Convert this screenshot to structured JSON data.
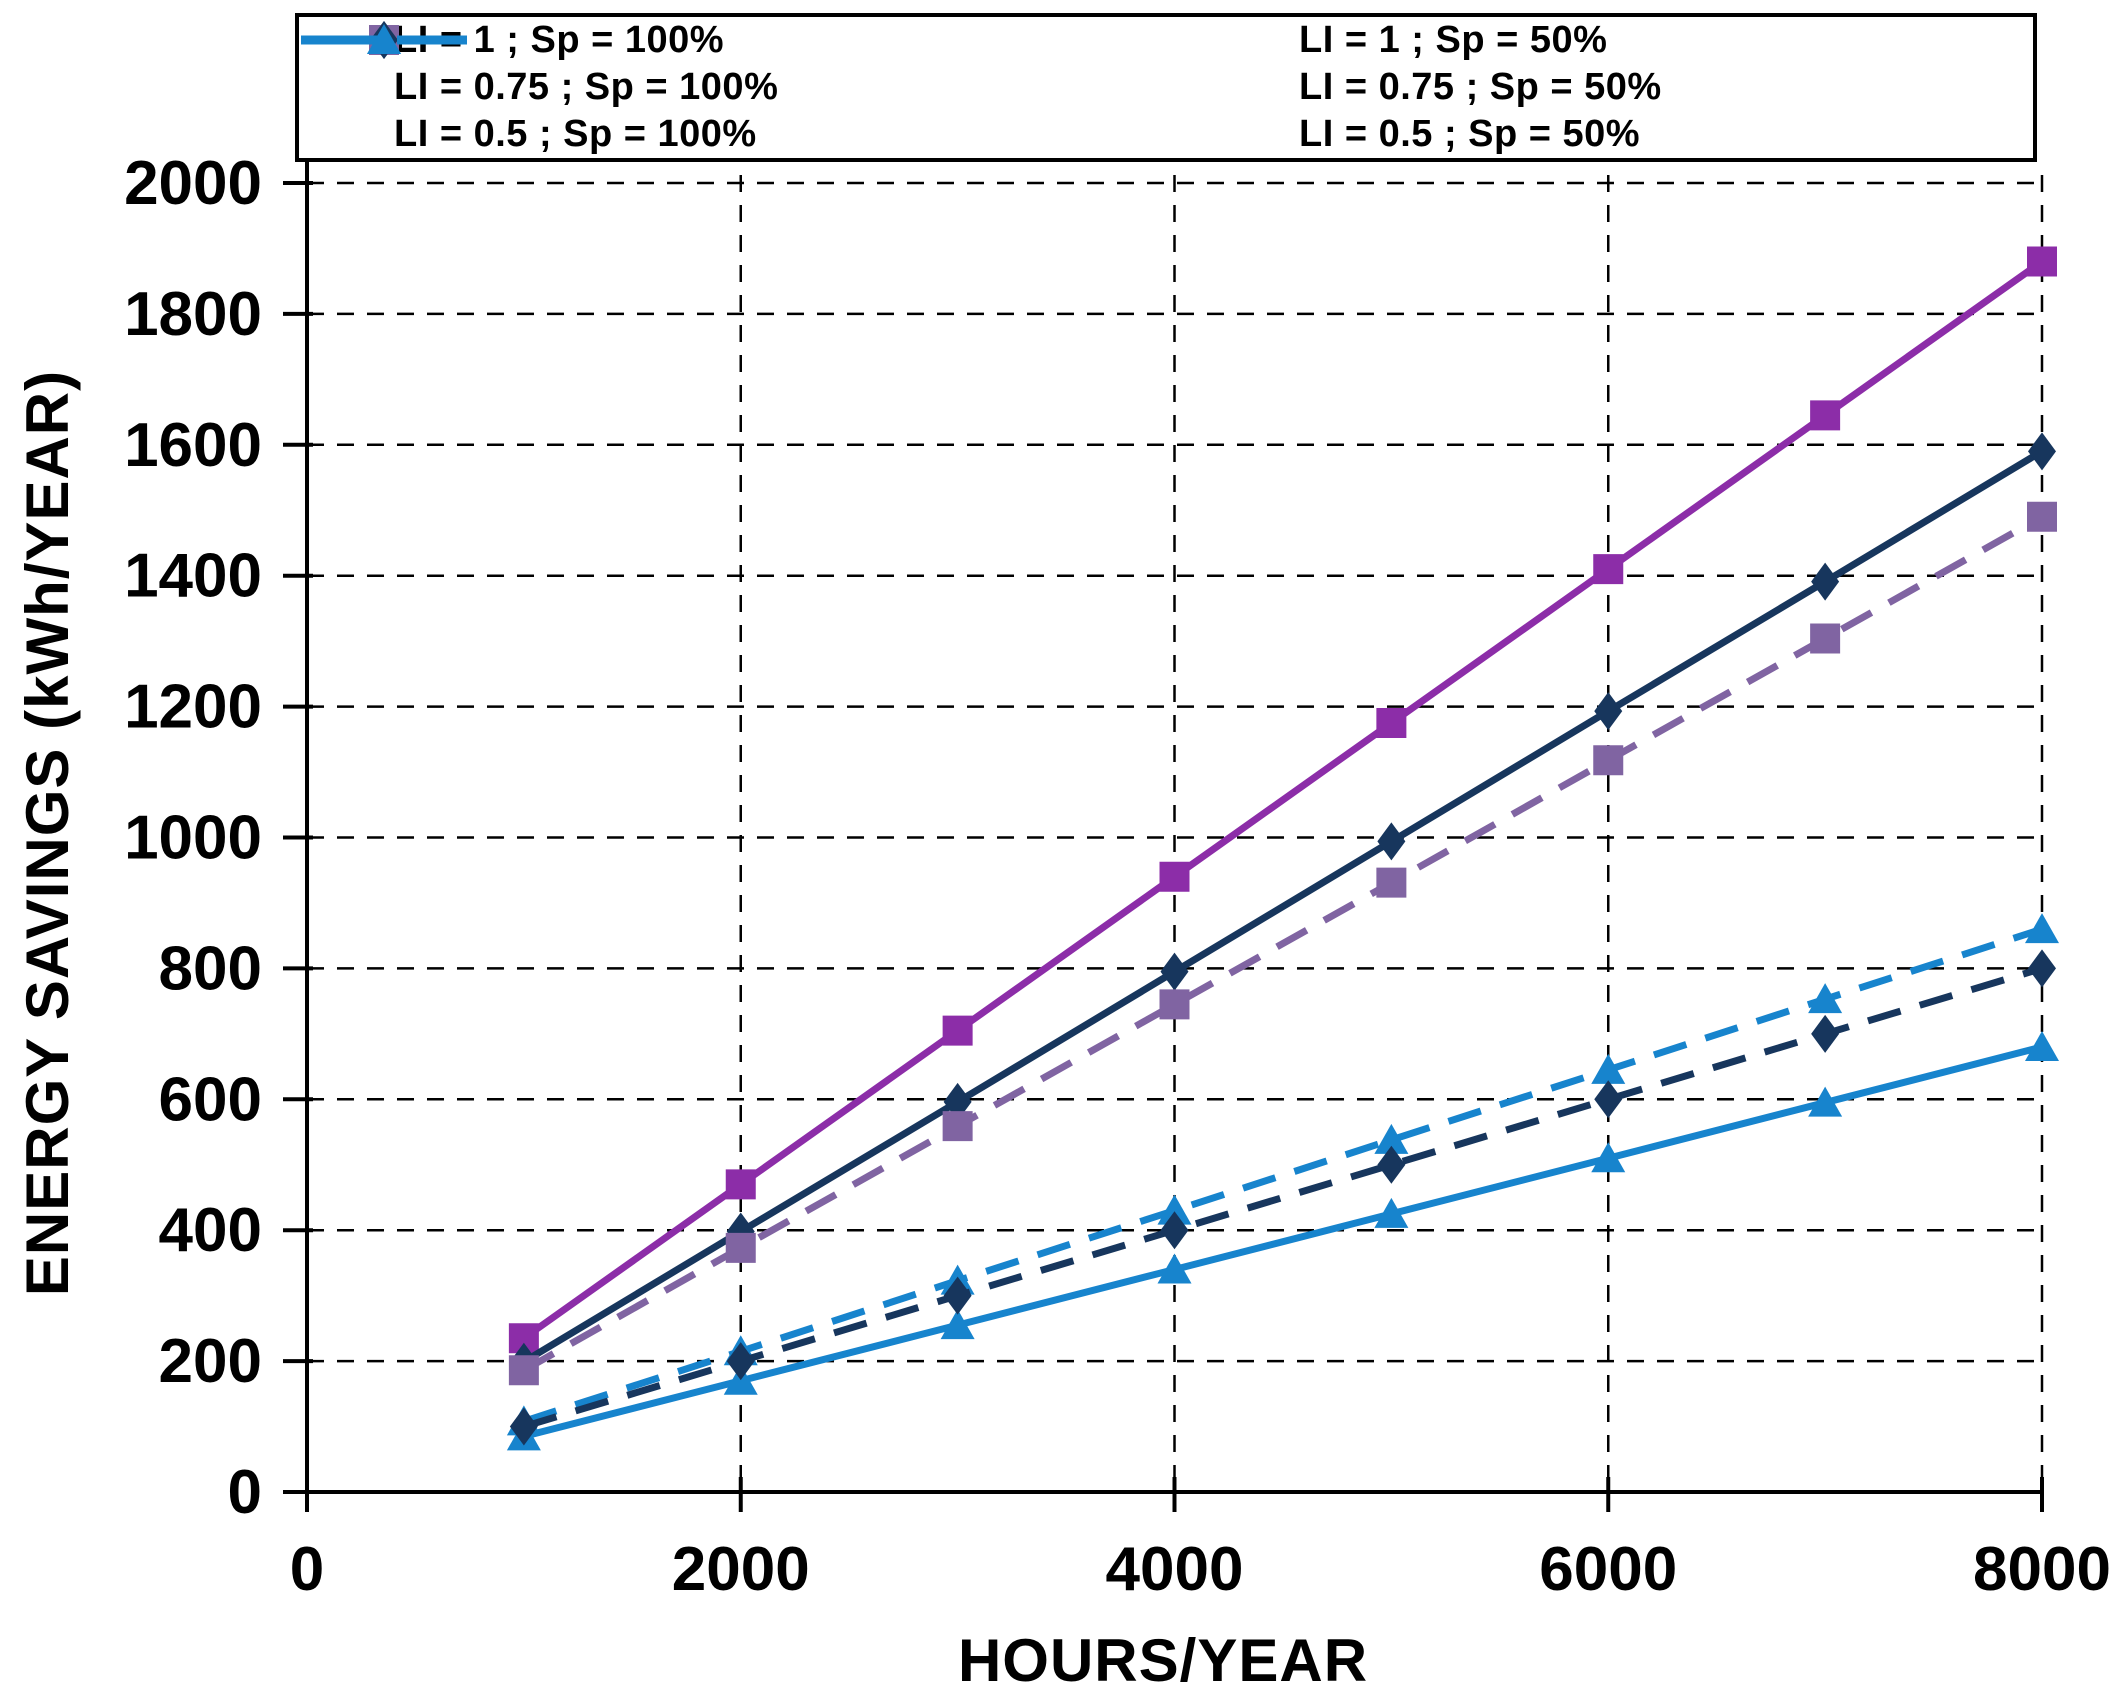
{
  "chart_data": {
    "type": "line",
    "title": "",
    "xlabel": "HOURS/YEAR",
    "ylabel": "ENERGY SAVINGS (kWh/YEAR)",
    "xlim": [
      0,
      8000
    ],
    "ylim": [
      0,
      2000
    ],
    "x_ticks": [
      0,
      2000,
      4000,
      6000,
      8000
    ],
    "y_ticks": [
      0,
      200,
      400,
      600,
      800,
      1000,
      1200,
      1400,
      1600,
      1800,
      2000
    ],
    "grid": "dashed-black-both-axes",
    "legend_position": "top",
    "axis_color": "#000000",
    "background": "#ffffff",
    "x": [
      1000,
      2000,
      3000,
      4000,
      5000,
      6000,
      7000,
      8000
    ],
    "series": [
      {
        "name": "LI = 1 ; Sp = 100%",
        "color": "#8C2DA8",
        "line": "solid",
        "marker": "square",
        "values": [
          235,
          470,
          705,
          940,
          1175,
          1410,
          1645,
          1880
        ]
      },
      {
        "name": "LI = 0.75 ; Sp = 100%",
        "color": "#17365D",
        "line": "solid",
        "marker": "diamond",
        "values": [
          199,
          398,
          596,
          795,
          994,
          1193,
          1391,
          1590
        ]
      },
      {
        "name": "LI = 0.5 ; Sp = 100%",
        "color": "#1784CD",
        "line": "solid",
        "marker": "triangle",
        "values": [
          85,
          170,
          255,
          340,
          425,
          510,
          595,
          680
        ]
      },
      {
        "name": "LI = 1 ; Sp = 50%",
        "color": "#8064A2",
        "line": "dashed",
        "marker": "square",
        "values": [
          186,
          373,
          559,
          745,
          931,
          1118,
          1304,
          1490
        ]
      },
      {
        "name": "LI = 0.75 ; Sp = 50%",
        "color": "#17365D",
        "line": "dashed",
        "marker": "diamond",
        "values": [
          100,
          200,
          300,
          400,
          500,
          600,
          700,
          800
        ]
      },
      {
        "name": "LI = 0.5 ; Sp = 50%",
        "color": "#1784CD",
        "line": "dashed",
        "marker": "triangle",
        "values": [
          108,
          215,
          323,
          430,
          538,
          645,
          753,
          860
        ]
      }
    ],
    "draw_order": [
      0,
      1,
      2,
      3,
      5,
      4
    ]
  }
}
